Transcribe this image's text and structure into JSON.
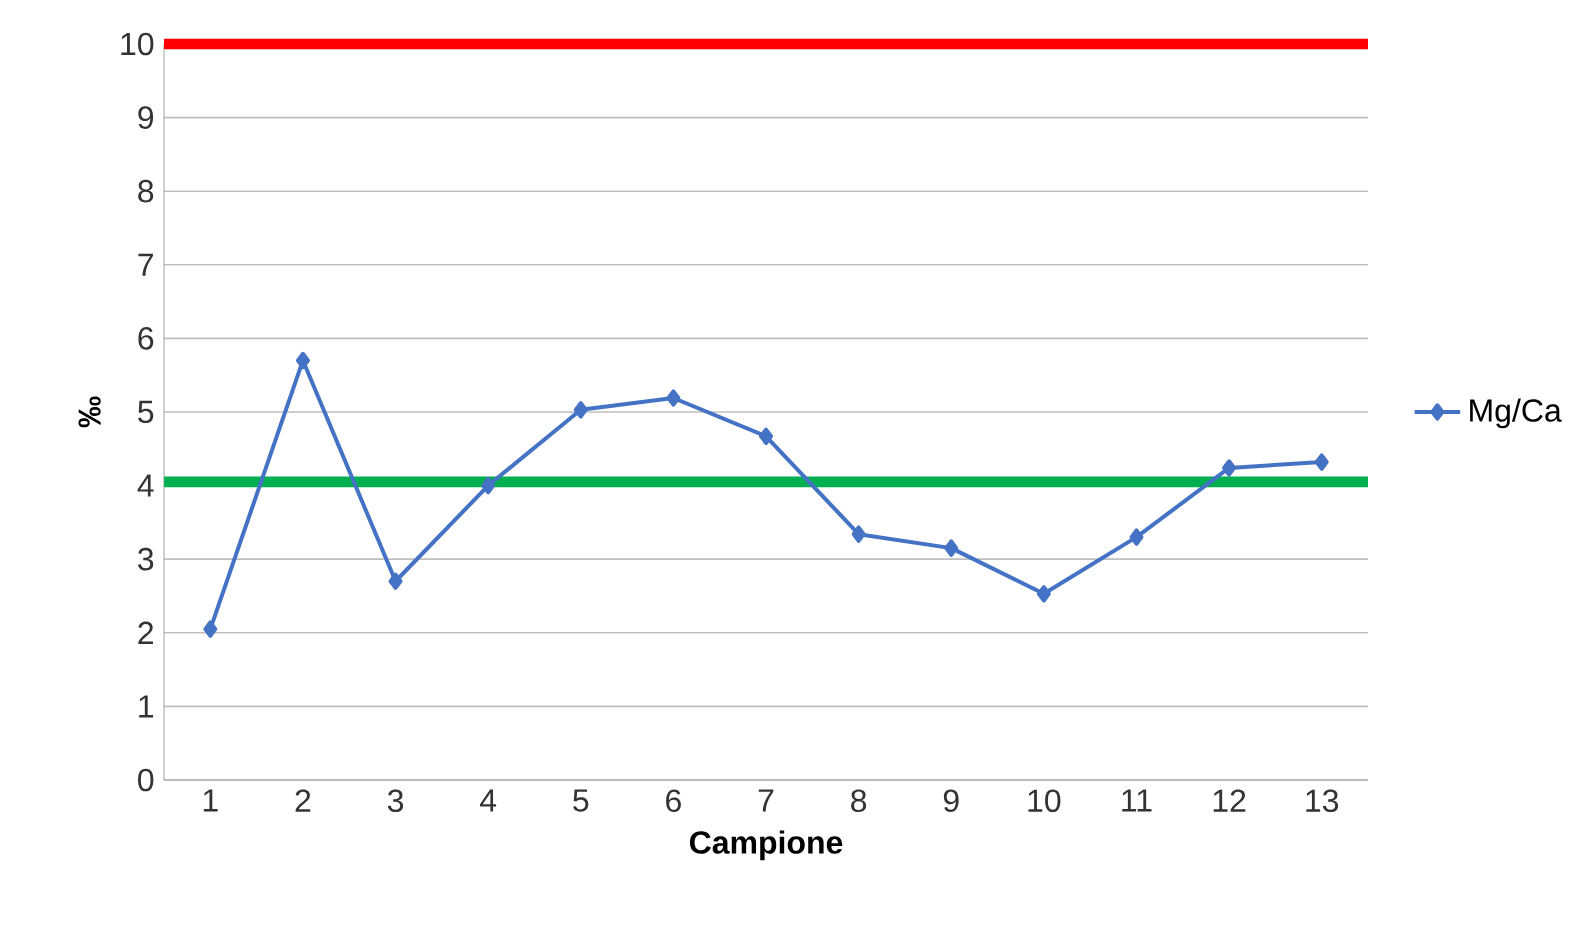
{
  "chart_data": {
    "type": "line",
    "xlabel": "Campione",
    "ylabel": "‰",
    "categories": [
      "1",
      "2",
      "3",
      "4",
      "5",
      "6",
      "7",
      "8",
      "9",
      "10",
      "11",
      "12",
      "13"
    ],
    "series": [
      {
        "name": "Mg/Ca",
        "color": "#4472c4",
        "values": [
          2.05,
          5.7,
          2.7,
          4.0,
          5.03,
          5.19,
          4.67,
          3.34,
          3.15,
          2.53,
          3.3,
          4.24,
          4.32
        ]
      }
    ],
    "ylim": [
      0,
      10
    ],
    "yticks": [
      0,
      1,
      2,
      3,
      4,
      5,
      6,
      7,
      8,
      9,
      10
    ],
    "ref_lines": [
      {
        "axis": "y",
        "value": 10,
        "color": "#ff0000"
      },
      {
        "axis": "y",
        "value": 4.05,
        "color": "#00b050"
      }
    ],
    "grid": "y",
    "legend": "right",
    "marker": "diamond",
    "line_style": "solid"
  }
}
